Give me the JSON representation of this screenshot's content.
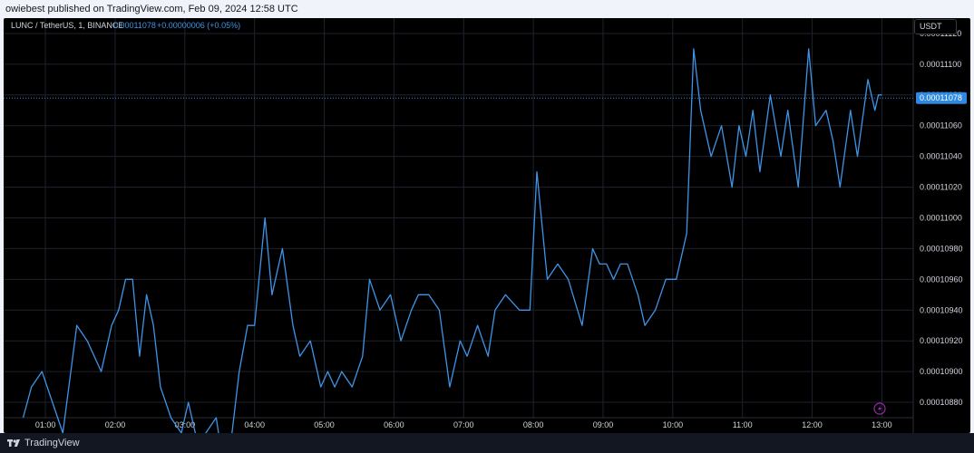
{
  "header": {
    "published_text": "owiebest published on TradingView.com, Feb 09, 2024 12:58 UTC"
  },
  "symbol": {
    "pair": "LUNC / TetherUS, 1, BINANCE",
    "last": "0.00011078",
    "change": "+0.00000006 (+0.05%)"
  },
  "currency_button": {
    "label": "USDT"
  },
  "footer": {
    "brand": "TradingView"
  },
  "colors": {
    "line": "#3d95e8",
    "price_tag": "#2f89e0",
    "background": "#000000",
    "grid": "#1e222d"
  },
  "icons": {
    "lightning": "lightning-icon"
  },
  "chart_data": {
    "type": "line",
    "title": "",
    "x_ticks": [
      "01:00",
      "02:00",
      "03:00",
      "04:00",
      "05:00",
      "06:00",
      "07:00",
      "08:00",
      "09:00",
      "10:00",
      "11:00",
      "12:00",
      "13:00"
    ],
    "y_ticks": [
      "0.00011120",
      "0.00011100",
      "0.00011080",
      "0.00011060",
      "0.00011040",
      "0.00011020",
      "0.00011000",
      "0.00010980",
      "0.00010960",
      "0.00010940",
      "0.00010920",
      "0.00010900",
      "0.00010880"
    ],
    "ylim": [
      0.0001087,
      0.0001113
    ],
    "xlim_hours": [
      0.4,
      13.45
    ],
    "last_price": 0.00011078,
    "last_price_label": "0.00011078",
    "series": [
      {
        "x": [
          0.68,
          0.8,
          0.95,
          1.1,
          1.25,
          1.45,
          1.6,
          1.8,
          1.95,
          2.05,
          2.15,
          2.25,
          2.35,
          2.45,
          2.55,
          2.65,
          2.8,
          2.95,
          3.05,
          3.2,
          3.3,
          3.45,
          3.55,
          3.65,
          3.78,
          3.9,
          4.0,
          4.15,
          4.25,
          4.4,
          4.55,
          4.65,
          4.8,
          4.95,
          5.05,
          5.15,
          5.25,
          5.4,
          5.55,
          5.65,
          5.8,
          5.95,
          6.1,
          6.25,
          6.35,
          6.5,
          6.65,
          6.8,
          6.95,
          7.05,
          7.2,
          7.35,
          7.45,
          7.6,
          7.8,
          7.95,
          8.05,
          8.2,
          8.35,
          8.5,
          8.7,
          8.85,
          8.95,
          9.05,
          9.15,
          9.25,
          9.35,
          9.5,
          9.6,
          9.75,
          9.9,
          10.05,
          10.2,
          10.3,
          10.4,
          10.55,
          10.7,
          10.85,
          10.95,
          11.0,
          11.05,
          11.15,
          11.25,
          11.4,
          11.55,
          11.65,
          11.8,
          11.95,
          12.05,
          12.2,
          12.3,
          12.4,
          12.55,
          12.65,
          12.8,
          12.9,
          12.95,
          13.0
        ],
        "y": [
          0.0001087,
          0.0001089,
          0.000109,
          0.0001088,
          0.0001086,
          0.0001093,
          0.0001092,
          0.000109,
          0.0001093,
          0.0001094,
          0.0001096,
          0.0001096,
          0.0001091,
          0.0001095,
          0.0001093,
          0.0001089,
          0.0001087,
          0.0001086,
          0.0001088,
          0.0001085,
          0.0001086,
          0.0001087,
          0.0001084,
          0.0001085,
          0.000109,
          0.0001093,
          0.0001093,
          0.00011,
          0.0001095,
          0.0001098,
          0.0001093,
          0.0001091,
          0.0001092,
          0.0001089,
          0.000109,
          0.0001089,
          0.000109,
          0.0001089,
          0.0001091,
          0.0001096,
          0.0001094,
          0.0001095,
          0.0001092,
          0.0001094,
          0.0001095,
          0.0001095,
          0.0001094,
          0.0001089,
          0.0001092,
          0.0001091,
          0.0001093,
          0.0001091,
          0.0001094,
          0.0001095,
          0.0001094,
          0.0001094,
          0.0001103,
          0.0001096,
          0.0001097,
          0.0001096,
          0.0001093,
          0.0001098,
          0.0001097,
          0.0001097,
          0.0001096,
          0.0001097,
          0.0001097,
          0.0001095,
          0.0001093,
          0.0001094,
          0.0001096,
          0.0001096,
          0.0001099,
          0.0001111,
          0.0001107,
          0.0001104,
          0.0001106,
          0.0001102,
          0.0001106,
          0.0001105,
          0.0001104,
          0.0001107,
          0.0001103,
          0.0001108,
          0.0001104,
          0.0001107,
          0.0001102,
          0.0001111,
          0.0001106,
          0.0001107,
          0.0001105,
          0.0001102,
          0.0001107,
          0.0001104,
          0.0001109,
          0.0001107,
          0.0001108,
          0.0001108
        ],
        "color": "#3d95e8"
      }
    ],
    "grid": true
  }
}
